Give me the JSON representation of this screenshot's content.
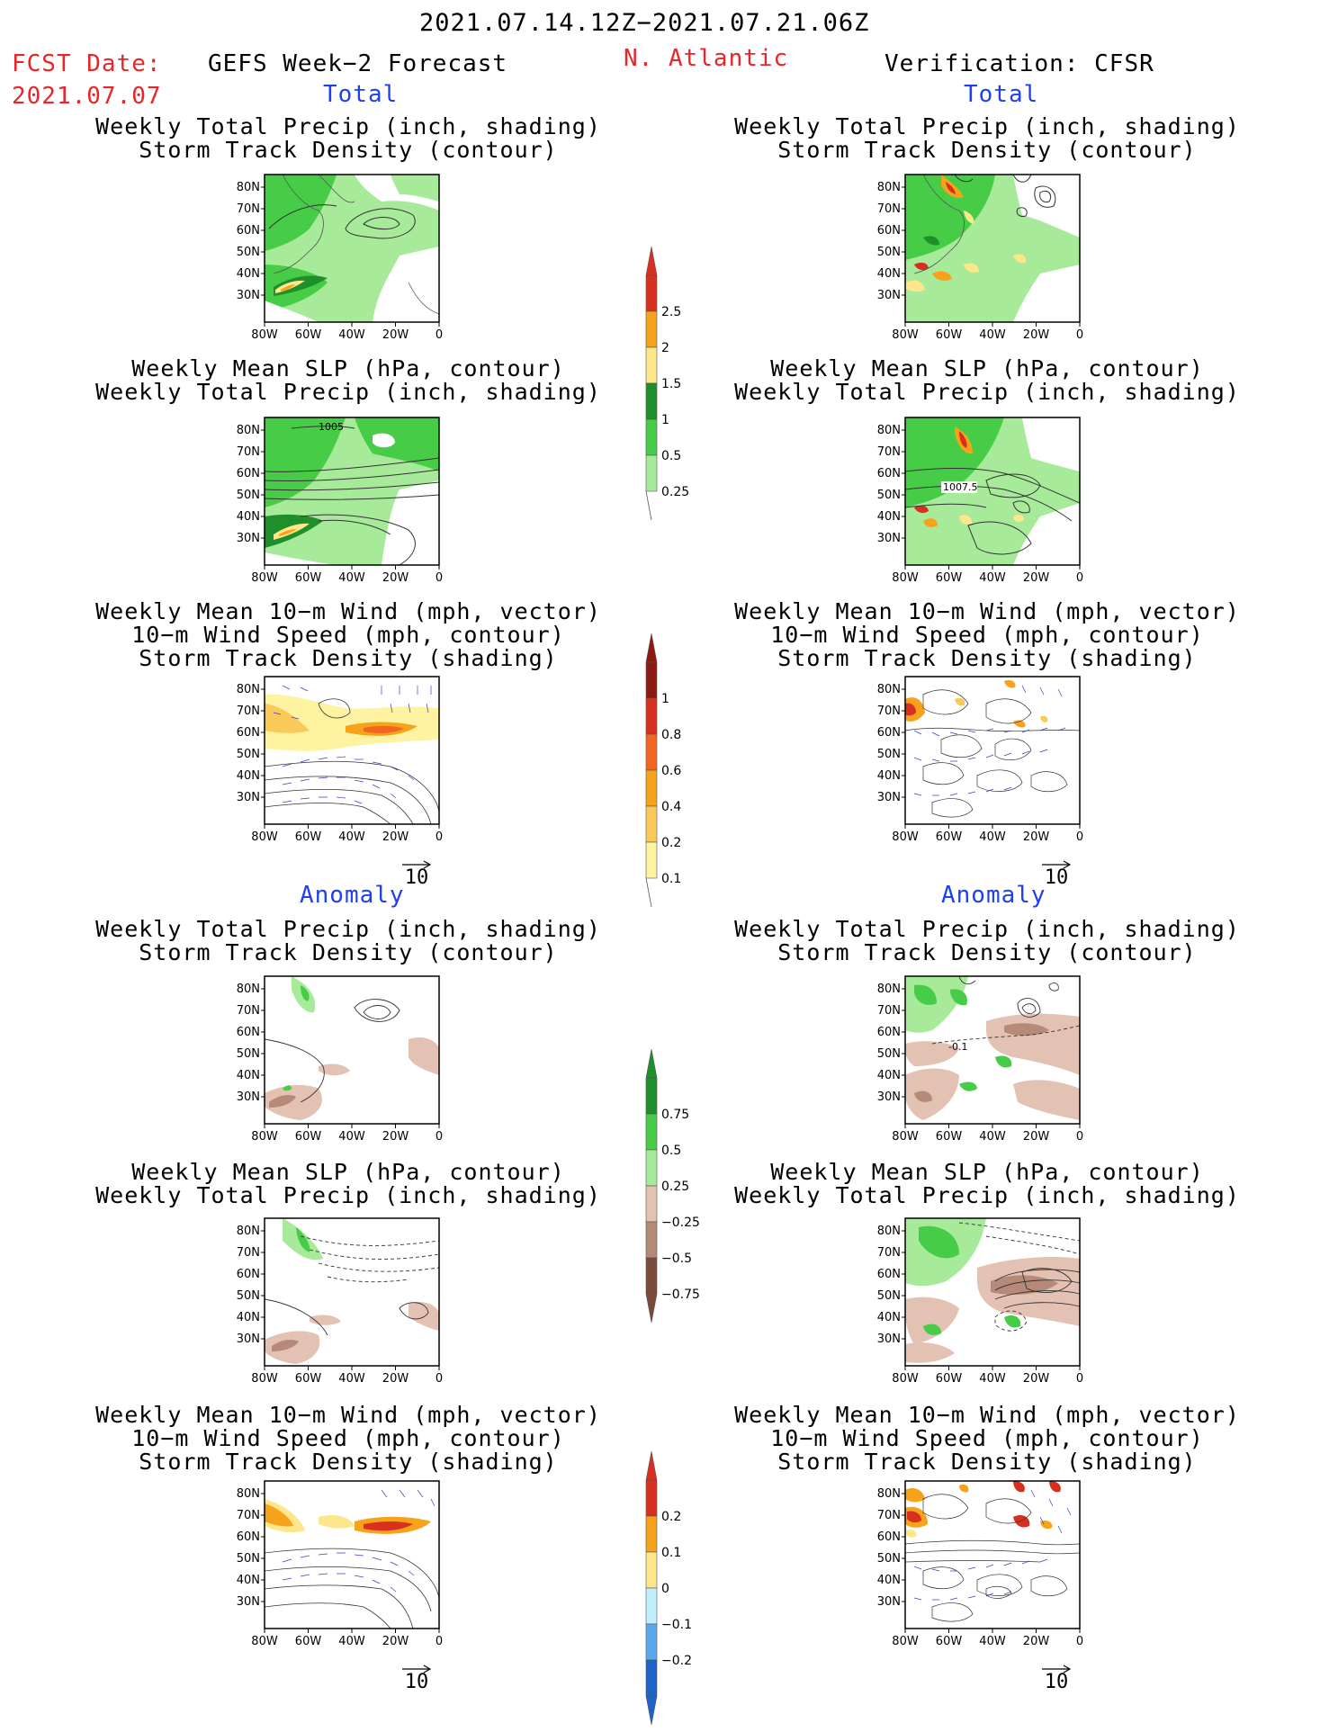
{
  "header": {
    "period": "2021.07.14.12Z−2021.07.21.06Z",
    "fcst_label": "FCST Date:",
    "fcst_date": "2021.07.07",
    "model": "GEFS Week−2 Forecast",
    "region": "N. Atlantic",
    "verification": "Verification: CFSR"
  },
  "sections": {
    "total": "Total",
    "anomaly": "Anomaly"
  },
  "titles": {
    "precip_track": [
      "Weekly Total Precip (inch, shading)",
      "Storm Track Density (contour)"
    ],
    "slp_precip": [
      "Weekly Mean SLP (hPa, contour)",
      "Weekly Total Precip (inch, shading)"
    ],
    "wind_track": [
      "Weekly Mean 10−m Wind (mph, vector)",
      "10−m Wind Speed (mph, contour)",
      "Storm Track Density (shading)"
    ]
  },
  "axes": {
    "lat_labels": [
      "80N",
      "70N",
      "60N",
      "50N",
      "40N",
      "30N"
    ],
    "lon_labels": [
      "80W",
      "60W",
      "40W",
      "20W",
      "0"
    ]
  },
  "contour_labels": {
    "gefs_slp_total": "1005",
    "cfsr_slp_total": "1007.5",
    "cfsr_track_anom": "-0.1"
  },
  "vector_reference": "10",
  "colorbars": {
    "precip_total": {
      "labels": [
        "2.5",
        "2",
        "1.5",
        "1",
        "0.5",
        "0.25"
      ],
      "colors": [
        "#d7301f",
        "#f7a21b",
        "#fde78a",
        "#1f8f2c",
        "#46cc46",
        "#a6ea9a"
      ]
    },
    "track_total": {
      "labels": [
        "1",
        "0.8",
        "0.6",
        "0.4",
        "0.2",
        "0.1"
      ],
      "colors": [
        "#8b1a10",
        "#d7301f",
        "#f26522",
        "#f7a21b",
        "#fbc85a",
        "#fdf3a0"
      ]
    },
    "precip_anom": {
      "labels": [
        "0.75",
        "0.5",
        "0.25",
        "−0.25",
        "−0.5",
        "−0.75"
      ],
      "colors": [
        "#1f8f2c",
        "#46cc46",
        "#a6ea9a",
        "#ffffff",
        "#e3c2b4",
        "#b68a78",
        "#7a4a3a"
      ]
    },
    "track_anom": {
      "labels": [
        "0.2",
        "0.1",
        "0",
        "−0.1",
        "−0.2"
      ],
      "colors": [
        "#d7301f",
        "#f7a21b",
        "#fde78a",
        "#bfeffc",
        "#59a9ec",
        "#1e63c8"
      ]
    }
  }
}
